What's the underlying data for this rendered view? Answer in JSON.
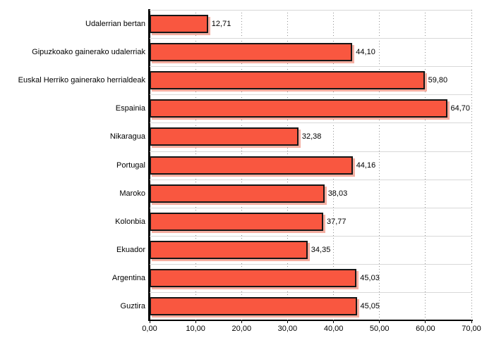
{
  "chart_data": {
    "type": "bar",
    "orientation": "horizontal",
    "title": "",
    "xlabel": "",
    "ylabel": "",
    "categories": [
      "Udalerrian bertan",
      "Gipuzkoako gainerako udalerriak",
      "Euskal Herriko gainerako herrialdeak",
      "Espainia",
      "Nikaragua",
      "Portugal",
      "Maroko",
      "Kolonbia",
      "Ekuador",
      "Argentina",
      "Guztira"
    ],
    "values": [
      12.71,
      44.1,
      59.8,
      64.7,
      32.38,
      44.16,
      38.03,
      37.77,
      34.35,
      45.03,
      45.05
    ],
    "value_labels": [
      "12,71",
      "44,10",
      "59,80",
      "64,70",
      "32,38",
      "44,16",
      "38,03",
      "37,77",
      "34,35",
      "45,03",
      "45,05"
    ],
    "xlim": [
      0,
      70
    ],
    "x_tick_values": [
      0,
      10,
      20,
      30,
      40,
      50,
      60,
      70
    ],
    "x_tick_labels": [
      "0,00",
      "10,00",
      "20,00",
      "30,00",
      "40,00",
      "50,00",
      "60,00",
      "70,00"
    ],
    "legend": "none",
    "grid": {
      "vertical_style": "dotted",
      "row_separators": true
    },
    "colors": {
      "bar_fill": "#f95740",
      "bar_border": "#161616",
      "bar_shadow": "#f4afa2",
      "gridline": "#8f8f8f",
      "row_separator": "#d8d8d8",
      "axis": "#000000",
      "text": "#000000",
      "background": "#ffffff"
    }
  }
}
